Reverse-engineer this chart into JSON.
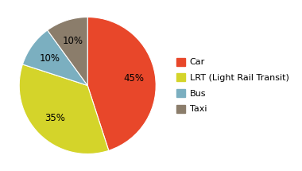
{
  "labels": [
    "Car",
    "LRT (Light Rail Transit)",
    "Bus",
    "Taxi"
  ],
  "values": [
    45,
    35,
    10,
    10
  ],
  "colors": [
    "#E8472A",
    "#D4D42A",
    "#7BAFC0",
    "#8B7D6B"
  ],
  "legend_labels": [
    "Car",
    "LRT (Light Rail Transit)",
    "Bus",
    "Taxi"
  ],
  "startangle": 90,
  "background_color": "#ffffff",
  "pct_fontsize": 8.5,
  "legend_fontsize": 8,
  "legend_labelspacing": 0.8
}
